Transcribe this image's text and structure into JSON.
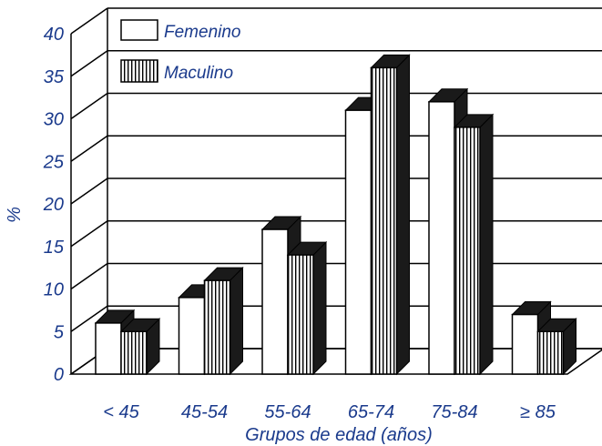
{
  "chart_data": {
    "type": "bar",
    "style": "3d-clustered",
    "categories": [
      "< 45",
      "45-54",
      "55-64",
      "65-74",
      "75-84",
      "≥ 85"
    ],
    "series": [
      {
        "name": "Femenino",
        "values": [
          6,
          9,
          17,
          31,
          32,
          7
        ],
        "pattern": "solid-white"
      },
      {
        "name": "Maculino",
        "values": [
          5,
          11,
          14,
          36,
          29,
          5
        ],
        "pattern": "vertical-stripes"
      }
    ],
    "title": "",
    "xlabel": "Grupos de edad (años)",
    "ylabel": "%",
    "ylim": [
      0,
      40
    ],
    "yticks": [
      0,
      5,
      10,
      15,
      20,
      25,
      30,
      35,
      40
    ],
    "grid": true,
    "legend": "top-left",
    "colors": {
      "axis_text": "#1a3a8c",
      "bar_fill": "#ffffff",
      "bar_shadow": "#1a1a1a",
      "lines": "#000000"
    }
  }
}
